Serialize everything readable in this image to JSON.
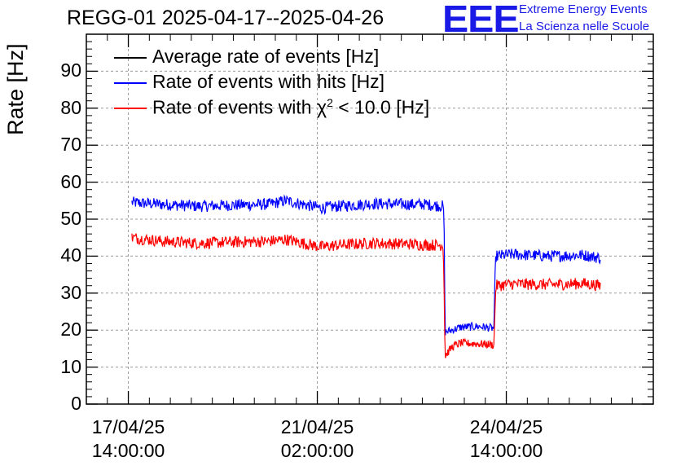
{
  "title": "REGG-01 2025-04-17--2025-04-26",
  "logo": {
    "mark": "EEE",
    "line1": "Extreme Energy Events",
    "line2": "La Scienza nelle Scuole",
    "color": "#1a1ae6"
  },
  "chart_data": {
    "type": "line",
    "title": "REGG-01 2025-04-17--2025-04-26",
    "ylabel": "Rate [Hz]",
    "xlabel": "",
    "ylim": [
      0,
      100
    ],
    "yticks": [
      0,
      10,
      20,
      30,
      40,
      50,
      60,
      70,
      80,
      90
    ],
    "x_units": "hours since 17/04/25 14:00:00",
    "xlim": [
      -24,
      300
    ],
    "xticks": [
      {
        "x": 0,
        "label_date": "17/04/25",
        "label_time": "14:00:00"
      },
      {
        "x": 108,
        "label_date": "21/04/25",
        "label_time": "02:00:00"
      },
      {
        "x": 216,
        "label_date": "24/04/25",
        "label_time": "14:00:00"
      }
    ],
    "grid": true,
    "legend_position": "top-left",
    "legend": [
      {
        "label_main": "Average rate of events [Hz]",
        "label_sup": "",
        "label_tail": "",
        "color": "#000000"
      },
      {
        "label_main": "Rate of events with hits [Hz]",
        "label_sup": "",
        "label_tail": "",
        "color": "#0000ff"
      },
      {
        "label_main": "Rate of events with χ",
        "label_sup": "2",
        "label_tail": " < 10.0 [Hz]",
        "color": "#ff0000"
      }
    ],
    "series": [
      {
        "name": "Rate of events with hits [Hz]",
        "color": "#0000ff",
        "x": [
          2,
          20,
          40,
          60,
          80,
          90,
          100,
          110,
          120,
          140,
          160,
          170,
          180,
          180.5,
          181,
          185,
          190,
          200,
          209,
          209.5,
          210,
          220,
          240,
          260,
          270
        ],
        "y": [
          54.5,
          54,
          53.5,
          53.8,
          54,
          55,
          54,
          53,
          53.5,
          54.2,
          54,
          54,
          53.5,
          47,
          19.5,
          20,
          20.8,
          21,
          20.5,
          33,
          40,
          40.5,
          40,
          40.3,
          39.5
        ]
      },
      {
        "name": "Rate of events with χ2 < 10.0 [Hz]",
        "color": "#ff0000",
        "x": [
          2,
          20,
          40,
          60,
          80,
          90,
          100,
          110,
          120,
          140,
          160,
          170,
          180,
          180.5,
          181,
          185,
          190,
          200,
          209,
          209.5,
          210,
          220,
          240,
          260,
          270
        ],
        "y": [
          45,
          44,
          43.5,
          43.8,
          44,
          44.5,
          43.5,
          42.5,
          43,
          43.5,
          43.3,
          43,
          43,
          30,
          13,
          15.5,
          16.5,
          16.3,
          16,
          25,
          32,
          32.5,
          32.3,
          32.6,
          32
        ]
      },
      {
        "name": "Average rate of events [Hz]",
        "color": "#000000",
        "x": [],
        "y": []
      }
    ]
  }
}
